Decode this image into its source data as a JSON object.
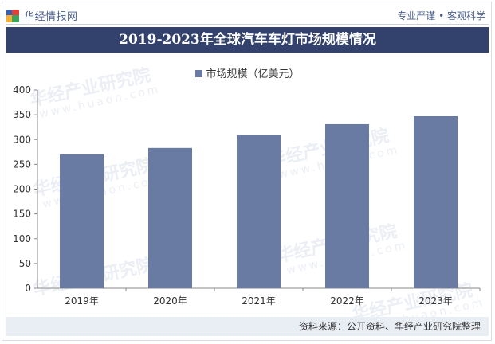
{
  "header": {
    "brand": "华经情报网",
    "slogan": "专业严谨 • 客观科学"
  },
  "watermark": {
    "text": "华经产业研究院",
    "url_text": "www.huaon.com"
  },
  "colors": {
    "bar": "#6a7ba3",
    "title_bg": "#32426c",
    "axis": "#888888",
    "icon": [
      "#3a5fb0",
      "#e0403a",
      "#f2b134",
      "#3aa35c"
    ]
  },
  "chart_data": {
    "type": "bar",
    "title": "2019-2023年全球汽车车灯市场规模情况",
    "categories": [
      "2019年",
      "2020年",
      "2021年",
      "2022年",
      "2023年"
    ],
    "series": [
      {
        "name": "市场规模（亿美元）",
        "values": [
          270,
          283,
          309,
          331,
          347
        ]
      }
    ],
    "ylim": [
      0,
      400
    ],
    "yticks": [
      0,
      50,
      100,
      150,
      200,
      250,
      300,
      350,
      400
    ],
    "xlabel": "",
    "ylabel": "",
    "grid": false,
    "legend_position": "top-center"
  },
  "footer": {
    "source": "资料来源：公开资料、华经产业研究院整理"
  }
}
